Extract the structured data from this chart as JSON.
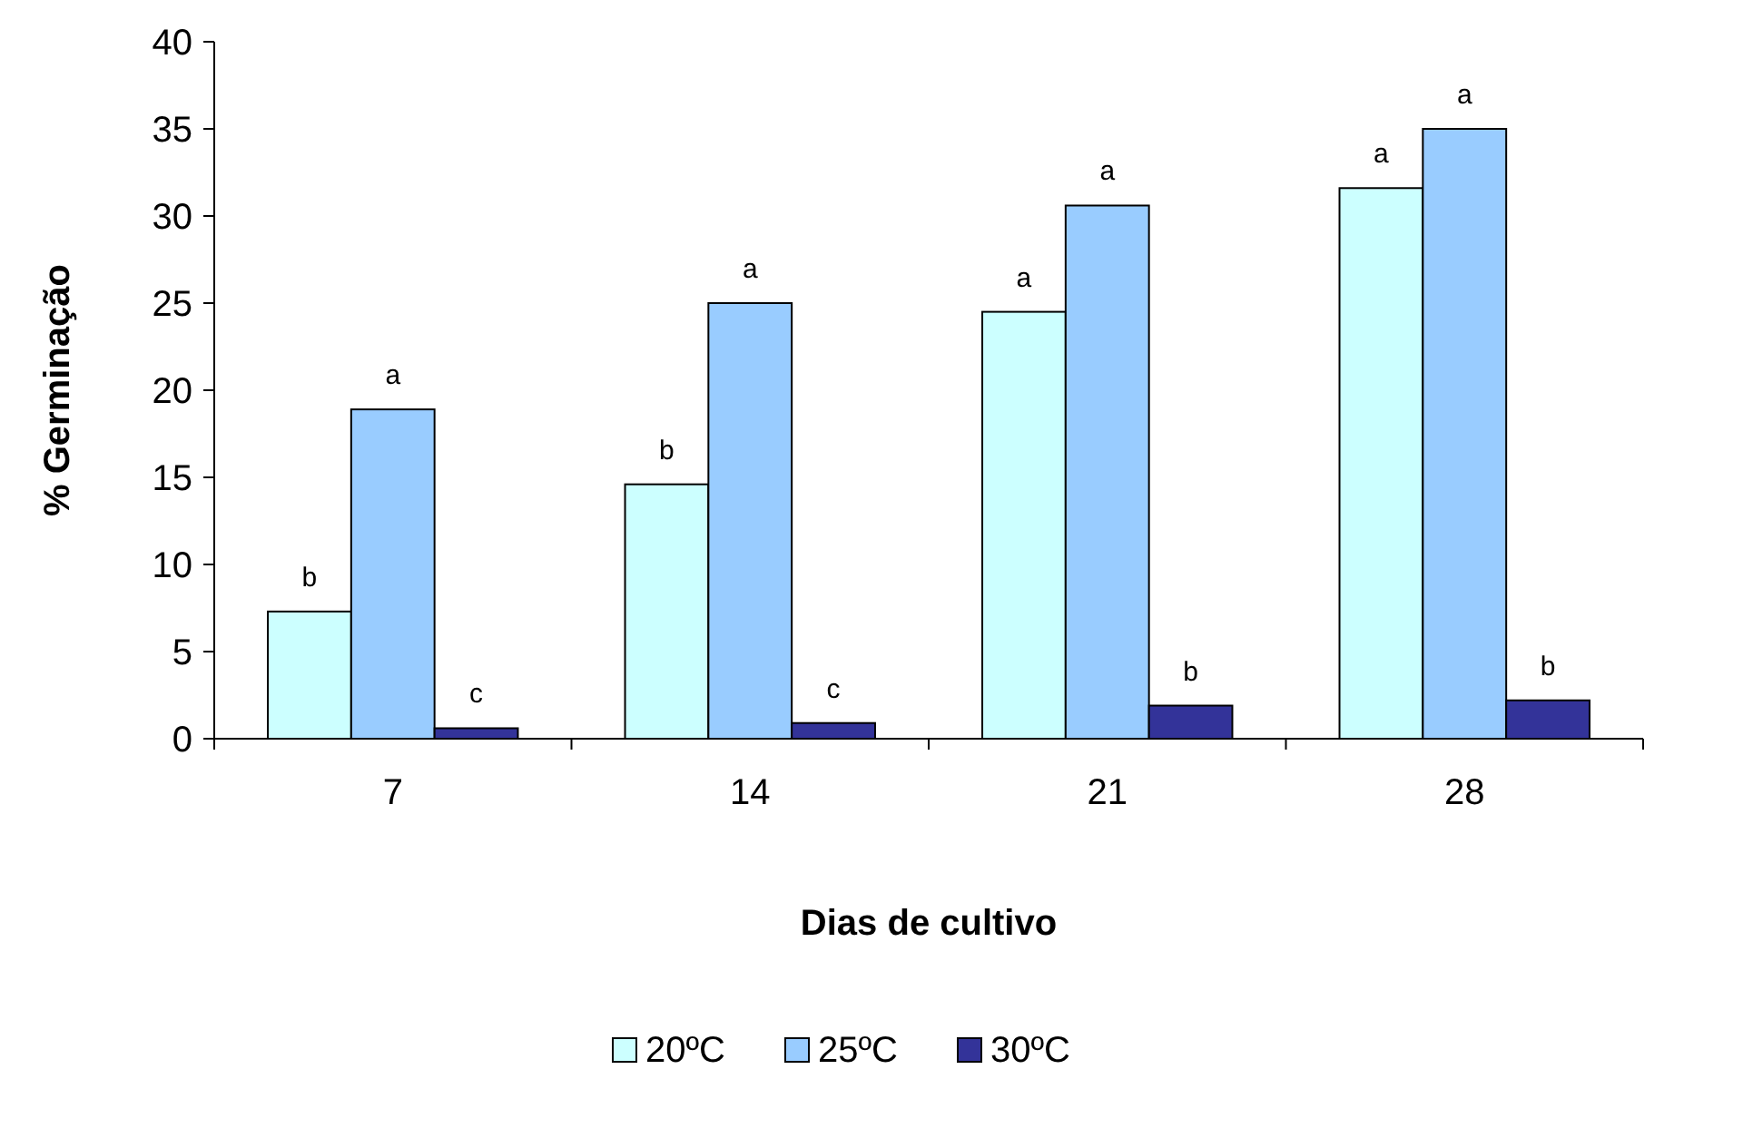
{
  "chart_data": {
    "type": "bar",
    "xlabel": "Dias de cultivo",
    "ylabel": "% Germinação",
    "categories": [
      "7",
      "14",
      "21",
      "28"
    ],
    "series": [
      {
        "name": "20ºC",
        "color": "#ccffff",
        "values": [
          7.3,
          14.6,
          24.5,
          31.6
        ],
        "value_labels": [
          "b",
          "b",
          "a",
          "a"
        ]
      },
      {
        "name": "25ºC",
        "color": "#99ccff",
        "values": [
          18.9,
          25.0,
          30.6,
          35.0
        ],
        "value_labels": [
          "a",
          "a",
          "a",
          "a"
        ]
      },
      {
        "name": "30ºC",
        "color": "#333399",
        "values": [
          0.6,
          0.9,
          1.9,
          2.2
        ],
        "value_labels": [
          "c",
          "c",
          "b",
          "b"
        ]
      }
    ],
    "ylim": [
      0,
      40
    ],
    "yticks": [
      0,
      5,
      10,
      15,
      20,
      25,
      30,
      35,
      40
    ],
    "grid": false,
    "legend": "bottom"
  }
}
